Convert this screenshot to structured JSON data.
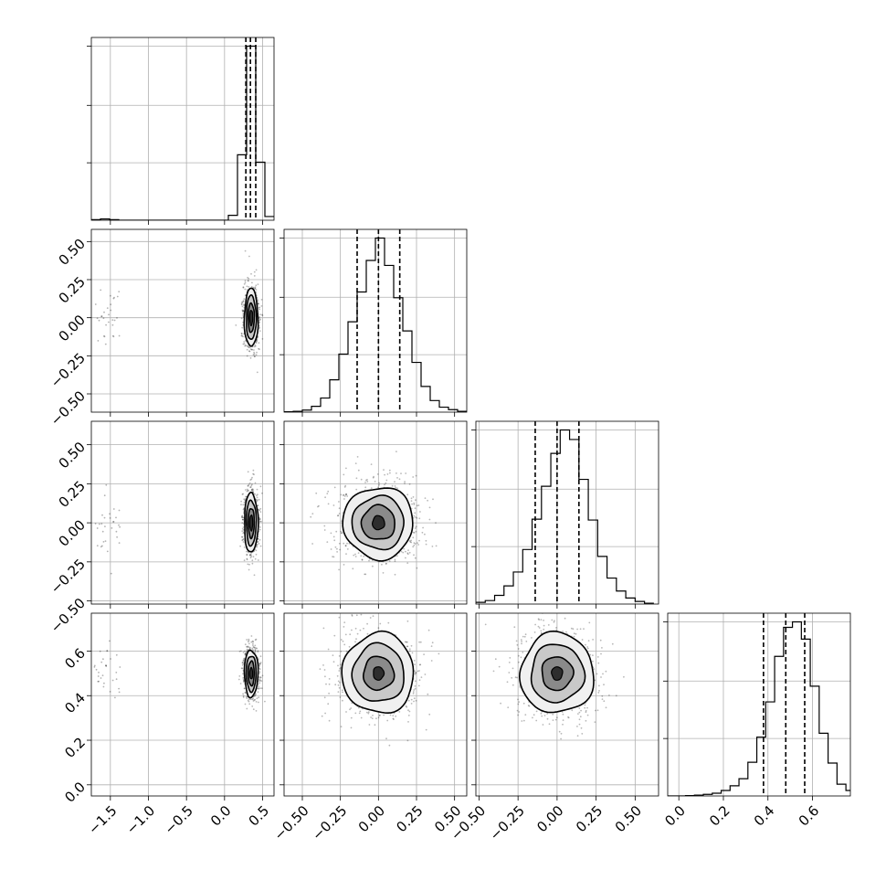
{
  "chart_data": {
    "type": "corner",
    "grid": true,
    "parameters": [
      {
        "index": 0,
        "range": [
          -1.75,
          0.65
        ],
        "ticks": [
          -1.5,
          -1.0,
          -0.5,
          0.0,
          0.5
        ],
        "tick_labels": [
          "−1.5",
          "−1.0",
          "−0.5",
          "0.0",
          "0.5"
        ],
        "quantiles": [
          0.28,
          0.34,
          0.41
        ]
      },
      {
        "index": 1,
        "range": [
          -0.62,
          0.58
        ],
        "ticks": [
          -0.5,
          -0.25,
          0.0,
          0.25,
          0.5
        ],
        "tick_labels": [
          "−0.50",
          "−0.25",
          "0.00",
          "0.25",
          "0.50"
        ],
        "quantiles": [
          -0.14,
          0.0,
          0.14
        ]
      },
      {
        "index": 2,
        "range": [
          -0.52,
          0.65
        ],
        "ticks": [
          -0.5,
          -0.25,
          0.0,
          0.25,
          0.5
        ],
        "tick_labels": [
          "−0.50",
          "−0.25",
          "0.00",
          "0.25",
          "0.50"
        ],
        "quantiles": [
          -0.14,
          0.0,
          0.14
        ]
      },
      {
        "index": 3,
        "range": [
          -0.05,
          0.77
        ],
        "ticks": [
          0.0,
          0.2,
          0.4,
          0.6
        ],
        "tick_labels": [
          "0.0",
          "0.2",
          "0.4",
          "0.6"
        ],
        "quantiles": [
          0.38,
          0.48,
          0.565
        ]
      }
    ],
    "histograms": [
      {
        "param": 0,
        "bins": [
          -1.75,
          -1.63,
          -1.51,
          -1.39,
          -1.27,
          -1.15,
          -1.03,
          -0.91,
          -0.79,
          -0.67,
          -0.55,
          -0.43,
          -0.31,
          -0.19,
          -0.07,
          0.05,
          0.17,
          0.29,
          0.41,
          0.53,
          0.65
        ],
        "counts": [
          1,
          2,
          1,
          0,
          0,
          0,
          0,
          0,
          0,
          0,
          0,
          0,
          0,
          0,
          0,
          8,
          106,
          282,
          94,
          6
        ]
      },
      {
        "param": 1,
        "bins": [
          -0.62,
          -0.56,
          -0.5,
          -0.44,
          -0.38,
          -0.32,
          -0.26,
          -0.2,
          -0.14,
          -0.08,
          -0.02,
          0.04,
          0.1,
          0.16,
          0.22,
          0.28,
          0.34,
          0.4,
          0.46,
          0.52,
          0.58
        ],
        "counts": [
          1,
          2,
          5,
          14,
          34,
          78,
          140,
          218,
          290,
          366,
          420,
          354,
          276,
          196,
          120,
          62,
          28,
          12,
          6,
          2
        ]
      },
      {
        "param": 2,
        "bins": [
          -0.52,
          -0.46,
          -0.4,
          -0.34,
          -0.28,
          -0.22,
          -0.16,
          -0.1,
          -0.04,
          0.02,
          0.08,
          0.14,
          0.2,
          0.26,
          0.32,
          0.38,
          0.44,
          0.5,
          0.56,
          0.62
        ],
        "counts": [
          4,
          8,
          20,
          42,
          74,
          126,
          196,
          272,
          348,
          402,
          380,
          288,
          194,
          110,
          60,
          30,
          14,
          6,
          2
        ]
      },
      {
        "param": 3,
        "bins": [
          -0.05,
          -0.01,
          0.03,
          0.07,
          0.11,
          0.15,
          0.19,
          0.23,
          0.27,
          0.31,
          0.35,
          0.39,
          0.43,
          0.47,
          0.51,
          0.55,
          0.59,
          0.63,
          0.67,
          0.71,
          0.75,
          0.77
        ],
        "counts": [
          0,
          0,
          1,
          2,
          4,
          7,
          14,
          26,
          44,
          86,
          150,
          240,
          356,
          430,
          444,
          400,
          280,
          160,
          84,
          30,
          14
        ]
      }
    ],
    "pairs": [
      {
        "x": 0,
        "y": 1,
        "center": [
          0.35,
          0.0
        ],
        "contour_radii": [
          [
            0.09,
            0.19
          ],
          [
            0.065,
            0.145
          ],
          [
            0.04,
            0.095
          ],
          [
            0.02,
            0.05
          ]
        ]
      },
      {
        "x": 0,
        "y": 2,
        "center": [
          0.35,
          0.0
        ],
        "contour_radii": [
          [
            0.09,
            0.19
          ],
          [
            0.065,
            0.145
          ],
          [
            0.04,
            0.095
          ],
          [
            0.02,
            0.05
          ]
        ]
      },
      {
        "x": 0,
        "y": 3,
        "center": [
          0.35,
          0.5
        ],
        "contour_radii": [
          [
            0.09,
            0.105
          ],
          [
            0.065,
            0.08
          ],
          [
            0.04,
            0.055
          ],
          [
            0.02,
            0.025
          ]
        ]
      },
      {
        "x": 1,
        "y": 2,
        "center": [
          0.0,
          0.0
        ],
        "contour_radii": [
          [
            0.23,
            0.23
          ],
          [
            0.17,
            0.17
          ],
          [
            0.11,
            0.11
          ],
          [
            0.04,
            0.045
          ]
        ]
      },
      {
        "x": 1,
        "y": 3,
        "center": [
          0.0,
          0.5
        ],
        "contour_radii": [
          [
            0.235,
            0.18
          ],
          [
            0.17,
            0.13
          ],
          [
            0.1,
            0.075
          ],
          [
            0.035,
            0.03
          ]
        ]
      },
      {
        "x": 2,
        "y": 3,
        "center": [
          0.0,
          0.5
        ],
        "contour_radii": [
          [
            0.235,
            0.18
          ],
          [
            0.17,
            0.13
          ],
          [
            0.1,
            0.075
          ],
          [
            0.035,
            0.03
          ]
        ]
      }
    ]
  }
}
